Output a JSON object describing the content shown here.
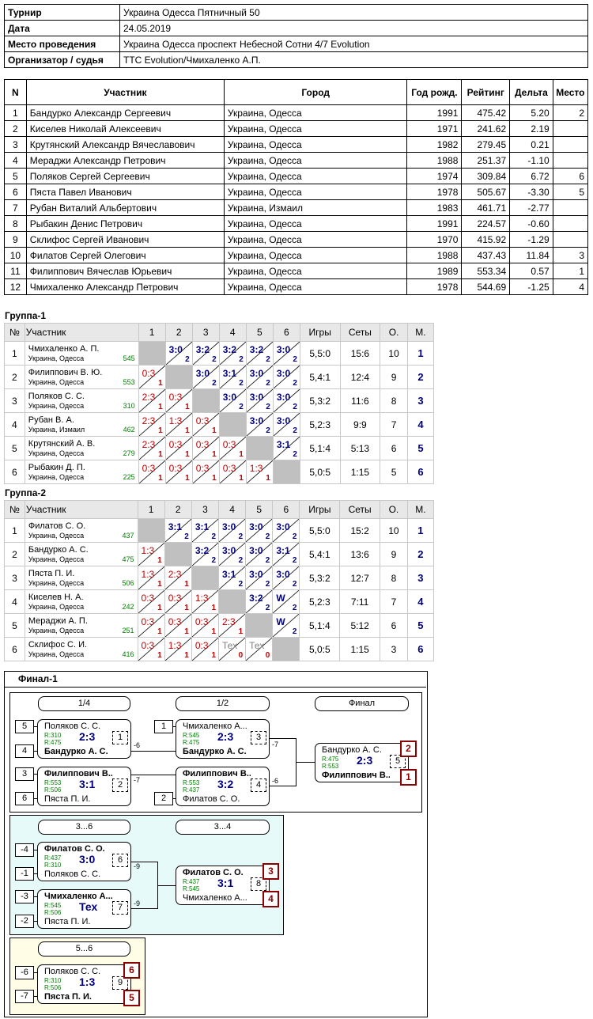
{
  "info": {
    "rows": [
      {
        "k": "Турнир",
        "v": "Украина Одесса Пятничный 50"
      },
      {
        "k": "Дата",
        "v": "24.05.2019"
      },
      {
        "k": "Место проведения",
        "v": "Украина Одесса проспект Небесной Сотни 4/7 Evolution"
      },
      {
        "k": "Организатор / судья",
        "v": "TTC Evolution/Чмихаленко А.П."
      }
    ]
  },
  "participants": {
    "headers": [
      "N",
      "Участник",
      "Город",
      "Год рожд.",
      "Рейтинг",
      "Дельта",
      "Место"
    ],
    "rows": [
      [
        "1",
        "Бандурко Александр Сергеевич",
        "Украина, Одесса",
        "1991",
        "475.42",
        "5.20",
        "2"
      ],
      [
        "2",
        "Киселев Николай Алексеевич",
        "Украина, Одесса",
        "1971",
        "241.62",
        "2.19",
        ""
      ],
      [
        "3",
        "Крутянский Александр Вячеславович",
        "Украина, Одесса",
        "1982",
        "279.45",
        "0.21",
        ""
      ],
      [
        "4",
        "Мераджи Александр Петрович",
        "Украина, Одесса",
        "1988",
        "251.37",
        "-1.10",
        ""
      ],
      [
        "5",
        "Поляков Сергей Сергеевич",
        "Украина, Одесса",
        "1974",
        "309.84",
        "6.72",
        "6"
      ],
      [
        "6",
        "Пяста Павел Иванович",
        "Украина, Одесса",
        "1978",
        "505.67",
        "-3.30",
        "5"
      ],
      [
        "7",
        "Рубан Виталий Альбертович",
        "Украина, Измаил",
        "1983",
        "461.71",
        "-2.77",
        ""
      ],
      [
        "8",
        "Рыбакин Денис Петрович",
        "Украина, Одесса",
        "1991",
        "224.57",
        "-0.60",
        ""
      ],
      [
        "9",
        "Склифос Сергей Иванович",
        "Украина, Одесса",
        "1970",
        "415.92",
        "-1.29",
        ""
      ],
      [
        "10",
        "Филатов Сергей Олегович",
        "Украина, Одесса",
        "1988",
        "437.43",
        "11.84",
        "3"
      ],
      [
        "11",
        "Филиппович Вячеслав Юрьевич",
        "Украина, Одесса",
        "1989",
        "553.34",
        "0.57",
        "1"
      ],
      [
        "12",
        "Чмихаленко Александр Петрович",
        "Украина, Одесса",
        "1978",
        "544.69",
        "-1.25",
        "4"
      ]
    ]
  },
  "groups": [
    {
      "title": "Группа-1",
      "headers": [
        "№",
        "Участник",
        "1",
        "2",
        "3",
        "4",
        "5",
        "6",
        "Игры",
        "Сеты",
        "О.",
        "М."
      ],
      "rows": [
        {
          "n": "1",
          "name": "Чмихаленко А. П.",
          "city": "Украина, Одесса",
          "rating": "545",
          "cells": [
            null,
            {
              "s": "3:0",
              "p": "2",
              "t": "win"
            },
            {
              "s": "3:2",
              "p": "2",
              "t": "win"
            },
            {
              "s": "3:2",
              "p": "2",
              "t": "win"
            },
            {
              "s": "3:2",
              "p": "2",
              "t": "win"
            },
            {
              "s": "3:0",
              "p": "2",
              "t": "win"
            }
          ],
          "games": "5,5:0",
          "sets": "15:6",
          "pts": "10",
          "place": "1"
        },
        {
          "n": "2",
          "name": "Филиппович В. Ю.",
          "city": "Украина, Одесса",
          "rating": "553",
          "cells": [
            {
              "s": "0:3",
              "p": "1",
              "t": "loss"
            },
            null,
            {
              "s": "3:0",
              "p": "2",
              "t": "win"
            },
            {
              "s": "3:1",
              "p": "2",
              "t": "win"
            },
            {
              "s": "3:0",
              "p": "2",
              "t": "win"
            },
            {
              "s": "3:0",
              "p": "2",
              "t": "win"
            }
          ],
          "games": "5,4:1",
          "sets": "12:4",
          "pts": "9",
          "place": "2"
        },
        {
          "n": "3",
          "name": "Поляков С. С.",
          "city": "Украина, Одесса",
          "rating": "310",
          "cells": [
            {
              "s": "2:3",
              "p": "1",
              "t": "loss"
            },
            {
              "s": "0:3",
              "p": "1",
              "t": "loss"
            },
            null,
            {
              "s": "3:0",
              "p": "2",
              "t": "win"
            },
            {
              "s": "3:0",
              "p": "2",
              "t": "win"
            },
            {
              "s": "3:0",
              "p": "2",
              "t": "win"
            }
          ],
          "games": "5,3:2",
          "sets": "11:6",
          "pts": "8",
          "place": "3"
        },
        {
          "n": "4",
          "name": "Рубан В. А.",
          "city": "Украина, Измаил",
          "rating": "462",
          "cells": [
            {
              "s": "2:3",
              "p": "1",
              "t": "loss"
            },
            {
              "s": "1:3",
              "p": "1",
              "t": "loss"
            },
            {
              "s": "0:3",
              "p": "1",
              "t": "loss"
            },
            null,
            {
              "s": "3:0",
              "p": "2",
              "t": "win"
            },
            {
              "s": "3:0",
              "p": "2",
              "t": "win"
            }
          ],
          "games": "5,2:3",
          "sets": "9:9",
          "pts": "7",
          "place": "4"
        },
        {
          "n": "5",
          "name": "Крутянский А. В.",
          "city": "Украина, Одесса",
          "rating": "279",
          "cells": [
            {
              "s": "2:3",
              "p": "1",
              "t": "loss"
            },
            {
              "s": "0:3",
              "p": "1",
              "t": "loss"
            },
            {
              "s": "0:3",
              "p": "1",
              "t": "loss"
            },
            {
              "s": "0:3",
              "p": "1",
              "t": "loss"
            },
            null,
            {
              "s": "3:1",
              "p": "2",
              "t": "win"
            }
          ],
          "games": "5,1:4",
          "sets": "5:13",
          "pts": "6",
          "place": "5"
        },
        {
          "n": "6",
          "name": "Рыбакин Д. П.",
          "city": "Украина, Одесса",
          "rating": "225",
          "cells": [
            {
              "s": "0:3",
              "p": "1",
              "t": "loss"
            },
            {
              "s": "0:3",
              "p": "1",
              "t": "loss"
            },
            {
              "s": "0:3",
              "p": "1",
              "t": "loss"
            },
            {
              "s": "0:3",
              "p": "1",
              "t": "loss"
            },
            {
              "s": "1:3",
              "p": "1",
              "t": "loss"
            },
            null
          ],
          "games": "5,0:5",
          "sets": "1:15",
          "pts": "5",
          "place": "6"
        }
      ]
    },
    {
      "title": "Группа-2",
      "headers": [
        "№",
        "Участник",
        "1",
        "2",
        "3",
        "4",
        "5",
        "6",
        "Игры",
        "Сеты",
        "О.",
        "М."
      ],
      "rows": [
        {
          "n": "1",
          "name": "Филатов С. О.",
          "city": "Украина, Одесса",
          "rating": "437",
          "cells": [
            null,
            {
              "s": "3:1",
              "p": "2",
              "t": "win"
            },
            {
              "s": "3:1",
              "p": "2",
              "t": "win"
            },
            {
              "s": "3:0",
              "p": "2",
              "t": "win"
            },
            {
              "s": "3:0",
              "p": "2",
              "t": "win"
            },
            {
              "s": "3:0",
              "p": "2",
              "t": "win"
            }
          ],
          "games": "5,5:0",
          "sets": "15:2",
          "pts": "10",
          "place": "1"
        },
        {
          "n": "2",
          "name": "Бандурко А. С.",
          "city": "Украина, Одесса",
          "rating": "475",
          "cells": [
            {
              "s": "1:3",
              "p": "1",
              "t": "loss"
            },
            null,
            {
              "s": "3:2",
              "p": "2",
              "t": "win"
            },
            {
              "s": "3:0",
              "p": "2",
              "t": "win"
            },
            {
              "s": "3:0",
              "p": "2",
              "t": "win"
            },
            {
              "s": "3:1",
              "p": "2",
              "t": "win"
            }
          ],
          "games": "5,4:1",
          "sets": "13:6",
          "pts": "9",
          "place": "2"
        },
        {
          "n": "3",
          "name": "Пяста П. И.",
          "city": "Украина, Одесса",
          "rating": "506",
          "cells": [
            {
              "s": "1:3",
              "p": "1",
              "t": "loss"
            },
            {
              "s": "2:3",
              "p": "1",
              "t": "loss"
            },
            null,
            {
              "s": "3:1",
              "p": "2",
              "t": "win"
            },
            {
              "s": "3:0",
              "p": "2",
              "t": "win"
            },
            {
              "s": "3:0",
              "p": "2",
              "t": "win"
            }
          ],
          "games": "5,3:2",
          "sets": "12:7",
          "pts": "8",
          "place": "3"
        },
        {
          "n": "4",
          "name": "Киселев Н. А.",
          "city": "Украина, Одесса",
          "rating": "242",
          "cells": [
            {
              "s": "0:3",
              "p": "1",
              "t": "loss"
            },
            {
              "s": "0:3",
              "p": "1",
              "t": "loss"
            },
            {
              "s": "1:3",
              "p": "1",
              "t": "loss"
            },
            null,
            {
              "s": "3:2",
              "p": "2",
              "t": "win"
            },
            {
              "s": "W",
              "p": "2",
              "t": "win"
            }
          ],
          "games": "5,2:3",
          "sets": "7:11",
          "pts": "7",
          "place": "4"
        },
        {
          "n": "5",
          "name": "Мераджи А. П.",
          "city": "Украина, Одесса",
          "rating": "251",
          "cells": [
            {
              "s": "0:3",
              "p": "1",
              "t": "loss"
            },
            {
              "s": "0:3",
              "p": "1",
              "t": "loss"
            },
            {
              "s": "0:3",
              "p": "1",
              "t": "loss"
            },
            {
              "s": "2:3",
              "p": "1",
              "t": "loss"
            },
            null,
            {
              "s": "W",
              "p": "2",
              "t": "win"
            }
          ],
          "games": "5,1:4",
          "sets": "5:12",
          "pts": "6",
          "place": "5"
        },
        {
          "n": "6",
          "name": "Склифос С. И.",
          "city": "Украина, Одесса",
          "rating": "416",
          "cells": [
            {
              "s": "0:3",
              "p": "1",
              "t": "loss"
            },
            {
              "s": "1:3",
              "p": "1",
              "t": "loss"
            },
            {
              "s": "0:3",
              "p": "1",
              "t": "loss"
            },
            {
              "s": "Тех",
              "p": "0",
              "t": "tech"
            },
            {
              "s": "Тех",
              "p": "0",
              "t": "tech"
            },
            null
          ],
          "games": "5,0:5",
          "sets": "1:15",
          "pts": "3",
          "place": "6"
        }
      ]
    }
  ],
  "final": {
    "title": "Финал-1",
    "round_labels": {
      "r1": "1/4",
      "r2": "1/2",
      "r3": "Финал",
      "c1": "3...6",
      "c2": "3...4",
      "d1": "5...6"
    },
    "seeds": {
      "a1": "5",
      "a2": "4",
      "a3": "3",
      "a4": "6",
      "b1": "1",
      "b2": "2",
      "c1": "-4",
      "c2": "-1",
      "c3": "-3",
      "c4": "-2",
      "d1": "-6",
      "d2": "-7"
    },
    "matches": {
      "m1": {
        "p1": "Поляков С. С.",
        "p2": "Бандурко А. С.",
        "r1": "R:310",
        "r2": "R:475",
        "score": "2:3",
        "num": "1",
        "out": "-6"
      },
      "m2": {
        "p1": "Филиппович В...",
        "p2": "Пяста П. И.",
        "r1": "R:553",
        "r2": "R:506",
        "score": "3:1",
        "num": "2",
        "out": "-7"
      },
      "m3": {
        "p1": "Чмихаленко А...",
        "p2": "Бандурко А. С.",
        "r1": "R:545",
        "r2": "R:475",
        "score": "2:3",
        "num": "3",
        "out": "-7"
      },
      "m4": {
        "p1": "Филиппович В...",
        "p2": "Филатов С. О.",
        "r1": "R:553",
        "r2": "R:437",
        "score": "3:2",
        "num": "4",
        "out": "-6"
      },
      "m5": {
        "p1": "Бандурко А. С.",
        "p2": "Филиппович В...",
        "r1": "R:475",
        "r2": "R:553",
        "score": "2:3",
        "num": "5",
        "place1": "2",
        "place2": "1"
      },
      "m6": {
        "p1": "Филатов С. О.",
        "p2": "Поляков С. С.",
        "r1": "R:437",
        "r2": "R:310",
        "score": "3:0",
        "num": "6",
        "out": "-9"
      },
      "m7": {
        "p1": "Чмихаленко А...",
        "p2": "Пяста П. И.",
        "r1": "R:545",
        "r2": "R:506",
        "score": "Тех",
        "num": "7",
        "out": "-9"
      },
      "m8": {
        "p1": "Филатов С. О.",
        "p2": "Чмихаленко А...",
        "r1": "R:437",
        "r2": "R:545",
        "score": "3:1",
        "num": "8",
        "place1": "3",
        "place2": "4"
      },
      "m9": {
        "p1": "Поляков С. С.",
        "p2": "Пяста П. И.",
        "r1": "R:310",
        "r2": "R:506",
        "score": "1:3",
        "num": "9",
        "place1": "6",
        "place2": "5"
      }
    },
    "colors": {
      "consolation_bg": "#e6fafa",
      "fifth_bg": "#fffde6",
      "place": "#8b0000",
      "score": "#000080"
    }
  }
}
